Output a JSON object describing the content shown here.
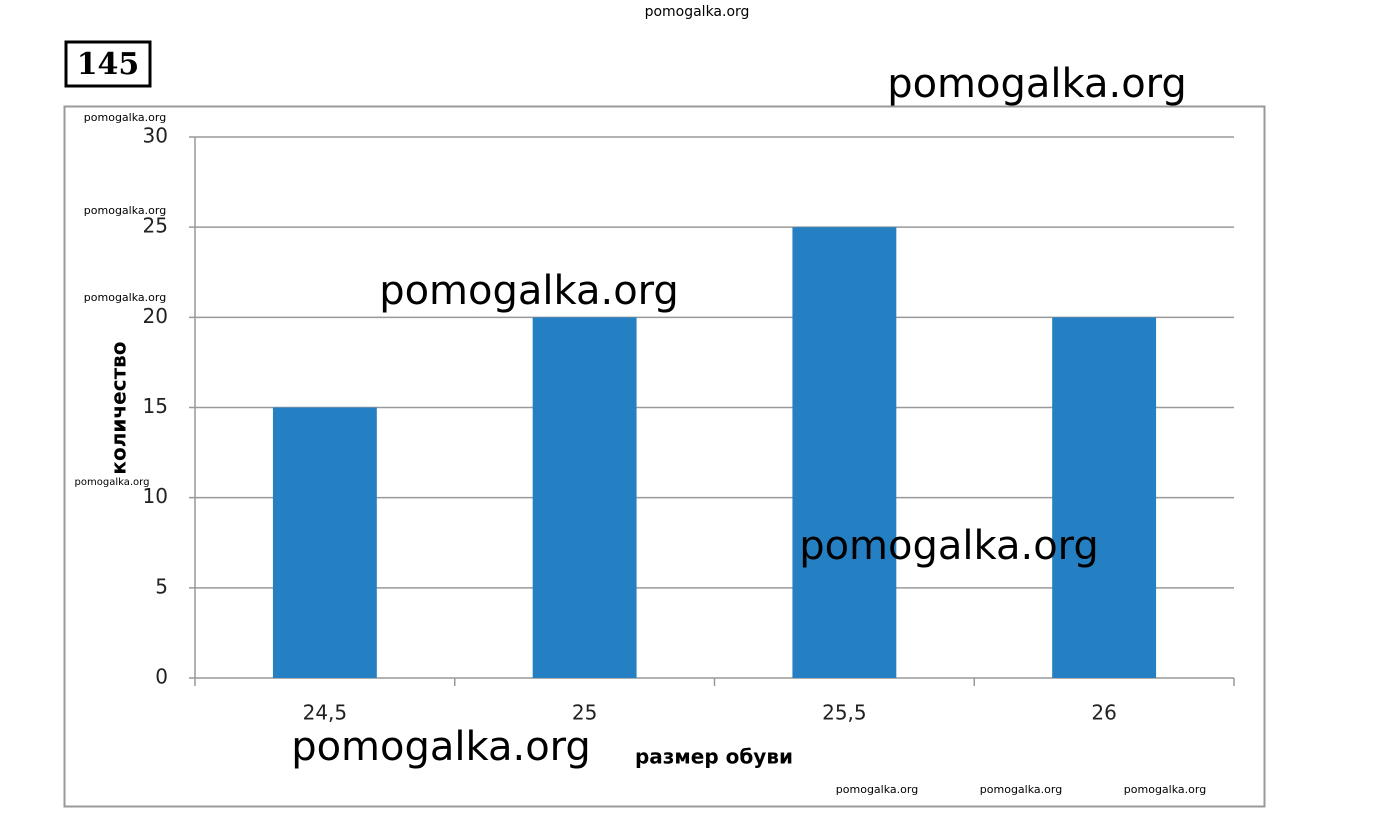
{
  "problem_number": "145",
  "watermarks": [
    "pomogalka.org",
    "pomogalka.org",
    "pomogalka.org",
    "pomogalka.org",
    "pomogalka.org",
    "pomogalka.org",
    "pomogalka.org",
    "pomogalka.org",
    "pomogalka.org",
    "pomogalka.org",
    "pomogalka.org",
    "pomogalka.org"
  ],
  "chart_data": {
    "type": "bar",
    "x_label": "размер обуви",
    "y_label": "количество",
    "categories": [
      "24,5",
      "25",
      "25,5",
      "26"
    ],
    "values": [
      15,
      20,
      25,
      20
    ],
    "color": "#2580c3",
    "ylim": [
      0,
      30
    ],
    "yticks": [
      0,
      5,
      10,
      15,
      20,
      25,
      30
    ],
    "grid": true
  }
}
